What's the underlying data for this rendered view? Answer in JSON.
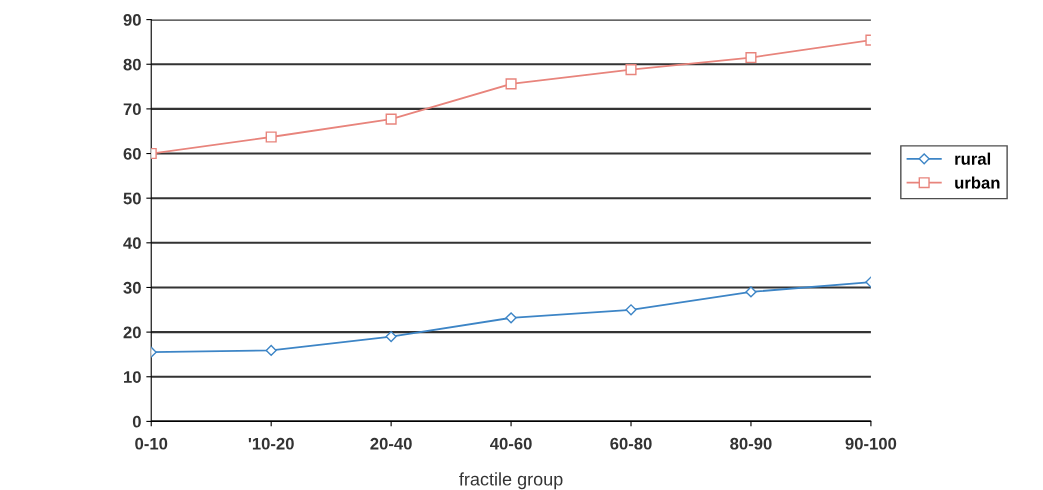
{
  "chart_data": {
    "type": "line",
    "xlabel": "fractile group",
    "categories": [
      "0-10",
      "'10-20",
      "20-40",
      "40-60",
      "60-80",
      "80-90",
      "90-100"
    ],
    "series": [
      {
        "name": "rural",
        "color": "#3d85c6",
        "marker": "diamond",
        "values": [
          15.5,
          15.9,
          19,
          23.2,
          25,
          29,
          31.2
        ]
      },
      {
        "name": "urban",
        "color": "#e8847c",
        "marker": "square",
        "values": [
          60,
          63.7,
          67.7,
          75.6,
          78.8,
          81.5,
          85.4
        ]
      }
    ],
    "ylim": [
      0,
      90
    ],
    "yticks": [
      0,
      10,
      20,
      30,
      40,
      50,
      60,
      70,
      80,
      90
    ],
    "grid": "y",
    "legend": "right",
    "line_style": "solid"
  }
}
